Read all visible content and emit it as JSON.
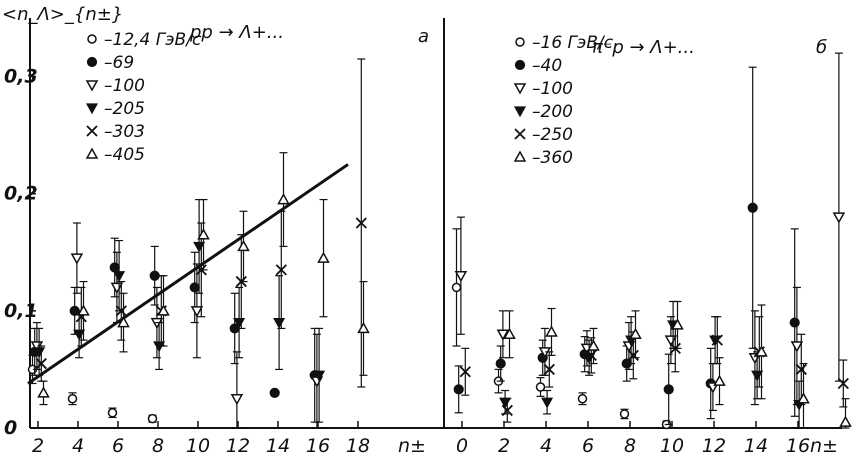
{
  "chart_data": [
    {
      "type": "scatter",
      "panel_label": "a",
      "title": "pp → Λ+...",
      "ylabel": "<n_Λ>_{n±}",
      "xlabel": "n±",
      "xticks": [
        "2",
        "4",
        "6",
        "8",
        "10",
        "12",
        "14",
        "16",
        "18"
      ],
      "yticks": [
        "0",
        "0,1",
        "0,2",
        "0,3"
      ],
      "xlim": [
        1,
        21
      ],
      "ylim": [
        0,
        0.35
      ],
      "series": [
        {
          "name": "12,4 ГэВ/с",
          "marker": "open-circle",
          "x": [
            2,
            4,
            6,
            8
          ],
          "y": [
            0.05,
            0.025,
            0.013,
            0.008
          ],
          "err": [
            0.012,
            0.005,
            0.004,
            0.003
          ]
        },
        {
          "name": "69",
          "marker": "filled-circle",
          "x": [
            2,
            4,
            6,
            8,
            10,
            12,
            14,
            16
          ],
          "y": [
            0.065,
            0.1,
            0.137,
            0.13,
            0.12,
            0.085,
            0.03,
            0.045
          ],
          "err": [
            0.02,
            0.02,
            0.025,
            0.025,
            0.03,
            0.03,
            0,
            0.04
          ]
        },
        {
          "name": "100",
          "marker": "open-triangle-down",
          "x": [
            2,
            4,
            6,
            8,
            10,
            12,
            16
          ],
          "y": [
            0.07,
            0.145,
            0.12,
            0.09,
            0.1,
            0.025,
            0.04
          ],
          "err": [
            0.02,
            0.03,
            0.03,
            0.03,
            0.04,
            0.04,
            0.04
          ]
        },
        {
          "name": "205",
          "marker": "filled-triangle-down",
          "x": [
            2,
            4,
            6,
            8,
            10,
            12,
            14,
            16
          ],
          "y": [
            0.065,
            0.08,
            0.13,
            0.07,
            0.155,
            0.09,
            0.09,
            0.045
          ],
          "err": [
            0.02,
            0.02,
            0.03,
            0.02,
            0.04,
            0.03,
            0.04,
            0.04
          ]
        },
        {
          "name": "303",
          "marker": "cross",
          "x": [
            2,
            4,
            6,
            8,
            10,
            12,
            14,
            18
          ],
          "y": [
            0.055,
            0.095,
            0.1,
            0.1,
            0.135,
            0.125,
            0.135,
            0.175
          ],
          "err": [
            0.015,
            0.025,
            0.025,
            0.03,
            0.04,
            0.04,
            0.05,
            0.14
          ]
        },
        {
          "name": "405",
          "marker": "open-triangle-up",
          "x": [
            2,
            4,
            6,
            8,
            10,
            12,
            14,
            16,
            18
          ],
          "y": [
            0.03,
            0.1,
            0.09,
            0.1,
            0.165,
            0.155,
            0.195,
            0.145,
            0.085
          ],
          "err": [
            0.01,
            0.025,
            0.025,
            0.03,
            0.03,
            0.03,
            0.04,
            0.05,
            0.04
          ]
        }
      ],
      "fit_line": {
        "x": [
          1.5,
          17.5
        ],
        "y": [
          0.038,
          0.225
        ]
      }
    },
    {
      "type": "scatter",
      "panel_label": "б",
      "title": "π⁻p → Λ+...",
      "xlabel": "n±",
      "xticks": [
        "0",
        "2",
        "4",
        "6",
        "8",
        "10",
        "12",
        "14",
        "16"
      ],
      "xlim": [
        -1,
        19
      ],
      "ylim": [
        0,
        0.35
      ],
      "series": [
        {
          "name": "16 ГэВ/с",
          "marker": "open-circle",
          "x": [
            0,
            2,
            4,
            6,
            8,
            10
          ],
          "y": [
            0.12,
            0.04,
            0.035,
            0.025,
            0.012,
            0.003
          ],
          "err": [
            0.05,
            0.01,
            0.008,
            0.005,
            0.004,
            0.003
          ]
        },
        {
          "name": "40",
          "marker": "filled-circle",
          "x": [
            0,
            2,
            4,
            6,
            8,
            10,
            12,
            14,
            16
          ],
          "y": [
            0.033,
            0.055,
            0.06,
            0.063,
            0.055,
            0.033,
            0.038,
            0.188,
            0.09
          ],
          "err": [
            0.02,
            0.015,
            0.015,
            0.015,
            0.015,
            0.03,
            0.03,
            0.12,
            0.08
          ]
        },
        {
          "name": "100",
          "marker": "open-triangle-down",
          "x": [
            0,
            2,
            4,
            6,
            8,
            10,
            12,
            14,
            16,
            18
          ],
          "y": [
            0.13,
            0.08,
            0.065,
            0.068,
            0.07,
            0.075,
            0.035,
            0.06,
            0.07,
            0.18
          ],
          "err": [
            0.05,
            0.02,
            0.02,
            0.015,
            0.02,
            0.02,
            0.02,
            0.04,
            0.05,
            0.14
          ]
        },
        {
          "name": "200",
          "marker": "filled-triangle-down",
          "x": [
            2,
            4,
            6,
            8,
            10,
            12,
            14,
            16
          ],
          "y": [
            0.022,
            0.022,
            0.06,
            0.075,
            0.088,
            0.075,
            0.045,
            0.02
          ],
          "err": [
            0.01,
            0.01,
            0.015,
            0.02,
            0.02,
            0.02,
            0.02,
            0.02
          ]
        },
        {
          "name": "250",
          "marker": "cross",
          "x": [
            0,
            2,
            4,
            6,
            8,
            10,
            12,
            14,
            16,
            18
          ],
          "y": [
            0.048,
            0.015,
            0.05,
            0.062,
            0.062,
            0.068,
            0.075,
            0.065,
            0.05,
            0.038
          ],
          "err": [
            0.02,
            0.01,
            0.015,
            0.015,
            0.02,
            0.02,
            0.02,
            0.03,
            0.03,
            0.02
          ]
        },
        {
          "name": "360",
          "marker": "open-triangle-up",
          "x": [
            2,
            4,
            6,
            8,
            10,
            12,
            14,
            16,
            18
          ],
          "y": [
            0.08,
            0.082,
            0.07,
            0.08,
            0.088,
            0.04,
            0.065,
            0.025,
            0.005
          ],
          "err": [
            0.02,
            0.02,
            0.015,
            0.02,
            0.02,
            0.02,
            0.04,
            0.03,
            0.02
          ]
        }
      ]
    }
  ]
}
